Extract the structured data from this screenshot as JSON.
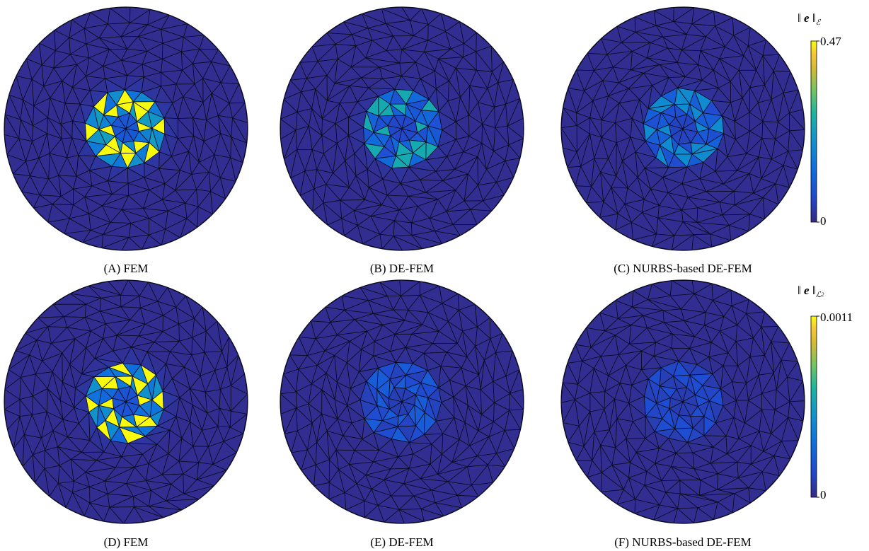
{
  "panels": [
    {
      "caption": "(A) FEM",
      "peak": 1.0,
      "ring": 0.5,
      "halo": 0.22
    },
    {
      "caption": "(B) DE-FEM",
      "peak": 0.55,
      "ring": 0.28,
      "halo": 0.14
    },
    {
      "caption": "(C) NURBS-based DE-FEM",
      "peak": 0.42,
      "ring": 0.24,
      "halo": 0.12
    },
    {
      "caption": "(D) FEM",
      "peak": 1.0,
      "ring": 0.45,
      "halo": 0.2
    },
    {
      "caption": "(E) DE-FEM",
      "peak": 0.22,
      "ring": 0.16,
      "halo": 0.09
    },
    {
      "caption": "(F) NURBS-based DE-FEM",
      "peak": 0.16,
      "ring": 0.13,
      "halo": 0.08
    }
  ],
  "colorbars": [
    {
      "title_prefix": "‖ ",
      "title_var": "e",
      "title_suffix": " ‖",
      "norm": "ℰ",
      "norm_sup": "",
      "max_label": "0.47",
      "min_label": "0"
    },
    {
      "title_prefix": "‖ ",
      "title_var": "e",
      "title_suffix": " ‖",
      "norm": "ℒ",
      "norm_sup": "2",
      "max_label": "0.0011",
      "min_label": "0"
    }
  ],
  "colormap": "parula"
}
